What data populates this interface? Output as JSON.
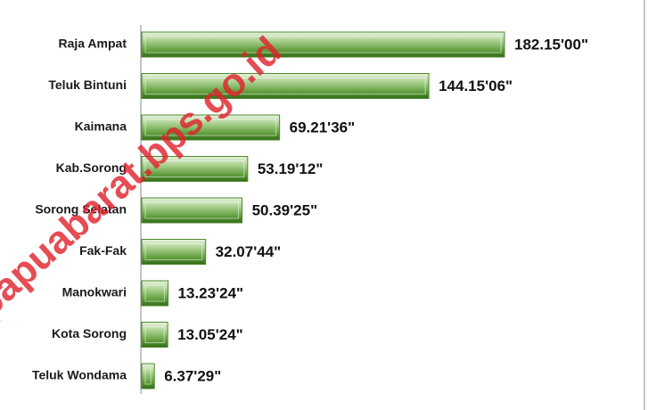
{
  "chart_data": {
    "type": "bar",
    "orientation": "horizontal",
    "color": "#4e8a2e",
    "categories": [
      "Raja Ampat",
      "Teluk Bintuni",
      "Kaimana",
      "Kab.Sorong",
      "Sorong Selatan",
      "Fak-Fak",
      "Manokwari",
      "Kota Sorong",
      "Teluk Wondama"
    ],
    "values": [
      182.15,
      144.15,
      69.21,
      53.19,
      50.39,
      32.07,
      13.23,
      13.05,
      6.37
    ],
    "value_labels": [
      "182.15'00\"",
      "144.15'06\"",
      "69.21'36\"",
      "53.19'12\"",
      "50.39'25\"",
      "32.07'44\"",
      "13.23'24\"",
      "13.05'24\"",
      "6.37'29\""
    ]
  },
  "watermark": "papuabarat.bps.go.id"
}
